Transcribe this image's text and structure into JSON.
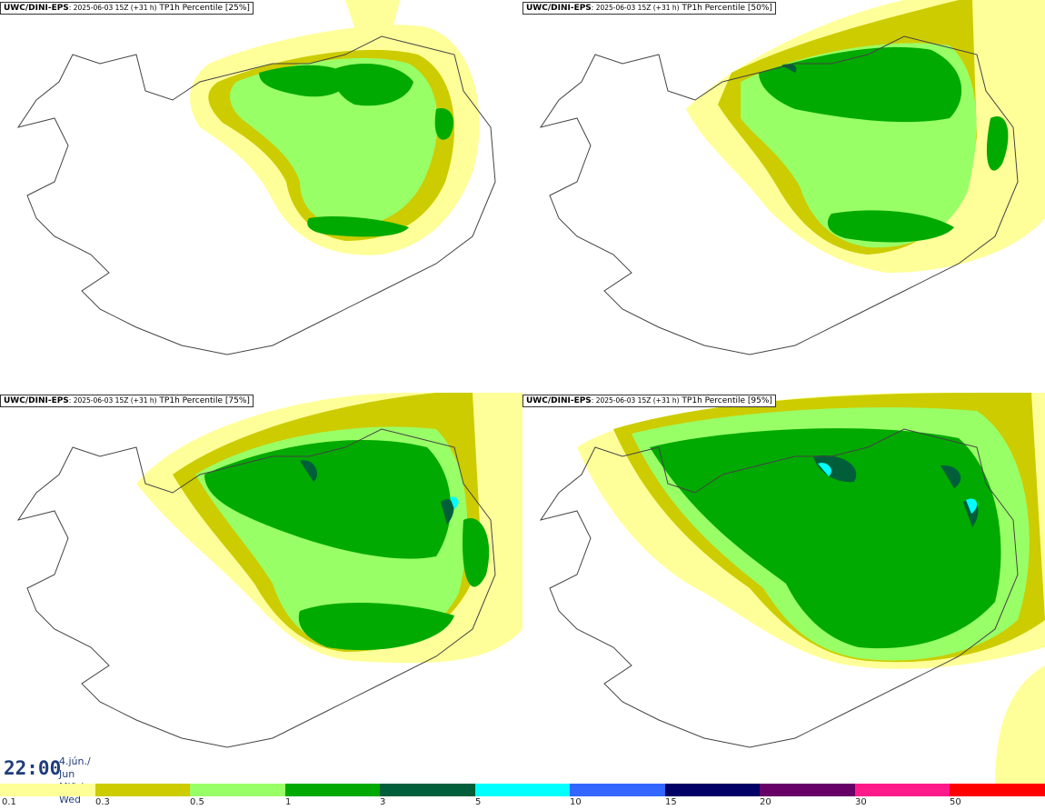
{
  "panels": [
    {
      "source": "UWC/DINI-EPS",
      "timestamp": ": 2025-06-03 15Z (+31 h)",
      "field": " TP1h Percentile [25%]"
    },
    {
      "source": "UWC/DINI-EPS",
      "timestamp": ": 2025-06-03 15Z (+31 h)",
      "field": " TP1h Percentile [50%]"
    },
    {
      "source": "UWC/DINI-EPS",
      "timestamp": ": 2025-06-03 15Z (+31 h)",
      "field": " TP1h Percentile [75%]"
    },
    {
      "source": "UWC/DINI-EPS",
      "timestamp": ": 2025-06-03 15Z (+31 h)",
      "field": " TP1h Percentile [95%]"
    }
  ],
  "valid_time": {
    "time": "22:00",
    "date_line1": "4.jún./ Jun",
    "date_line2": "Mið./ Wed"
  },
  "legend": {
    "colors": [
      "#ffff99",
      "#cccc00",
      "#99ff66",
      "#00aa00",
      "#005f3a",
      "#00ffff",
      "#3366ff",
      "#000066",
      "#660066",
      "#ff1a8c",
      "#ff0000"
    ],
    "labels": [
      "0.1",
      "0.3",
      "0.5",
      "1",
      "3",
      "5",
      "10",
      "15",
      "20",
      "30",
      "50"
    ]
  }
}
